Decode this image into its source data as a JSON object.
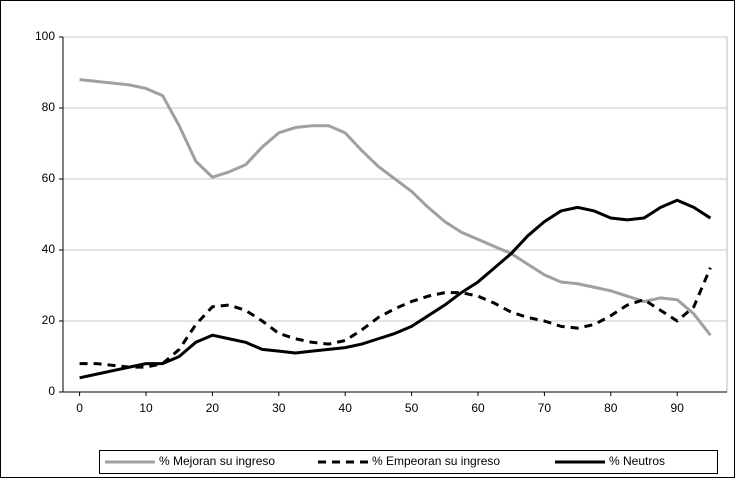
{
  "chart_data": {
    "type": "line",
    "x": [
      0,
      2.5,
      5,
      7.5,
      10,
      12.5,
      15,
      17.5,
      20,
      22.5,
      25,
      27.5,
      30,
      32.5,
      35,
      37.5,
      40,
      42.5,
      45,
      47.5,
      50,
      52.5,
      55,
      57.5,
      60,
      62.5,
      65,
      67.5,
      70,
      72.5,
      75,
      77.5,
      80,
      82.5,
      85,
      87.5,
      90,
      92.5,
      95
    ],
    "series": [
      {
        "name": "% Mejoran su ingreso",
        "color": "#a0a0a0",
        "dash": "solid",
        "values": [
          88,
          87.5,
          87,
          86.5,
          85.5,
          83.5,
          75,
          65,
          60.5,
          62,
          64,
          69,
          73,
          74.5,
          75,
          75,
          73,
          68,
          63.5,
          60,
          56.5,
          52,
          48,
          45,
          43,
          41,
          39,
          36,
          33,
          31,
          30.5,
          29.5,
          28.5,
          27,
          25.5,
          26.5,
          26,
          22,
          16
        ]
      },
      {
        "name": "% Empeoran su ingreso",
        "color": "#000000",
        "dash": "dashed",
        "values": [
          8,
          8,
          7.5,
          7,
          7,
          8,
          12,
          19,
          24,
          24.5,
          23,
          20,
          16.5,
          15,
          14,
          13.5,
          14.5,
          17.5,
          21,
          23.5,
          25.5,
          27,
          28,
          28,
          27,
          25,
          22.5,
          21,
          20,
          18.5,
          18,
          19,
          21.5,
          24.5,
          26,
          23,
          20,
          24,
          35
        ]
      },
      {
        "name": "% Neutros",
        "color": "#000000",
        "dash": "solid",
        "values": [
          4,
          5,
          6,
          7,
          8,
          8,
          10,
          14,
          16,
          15,
          14,
          12,
          11.5,
          11,
          11.5,
          12,
          12.5,
          13.5,
          15,
          16.5,
          18.5,
          21.5,
          24.5,
          28,
          31,
          35,
          39,
          44,
          48,
          51,
          52,
          51,
          49,
          48.5,
          49,
          52,
          54,
          52,
          49
        ]
      }
    ],
    "xlim": [
      -2.5,
      97.5
    ],
    "xticks": [
      0,
      10,
      20,
      30,
      40,
      50,
      60,
      70,
      80,
      90
    ],
    "ylim": [
      0,
      100
    ],
    "yticks": [
      0,
      20,
      40,
      60,
      80,
      100
    ],
    "grid": true,
    "legend": "bottom"
  }
}
